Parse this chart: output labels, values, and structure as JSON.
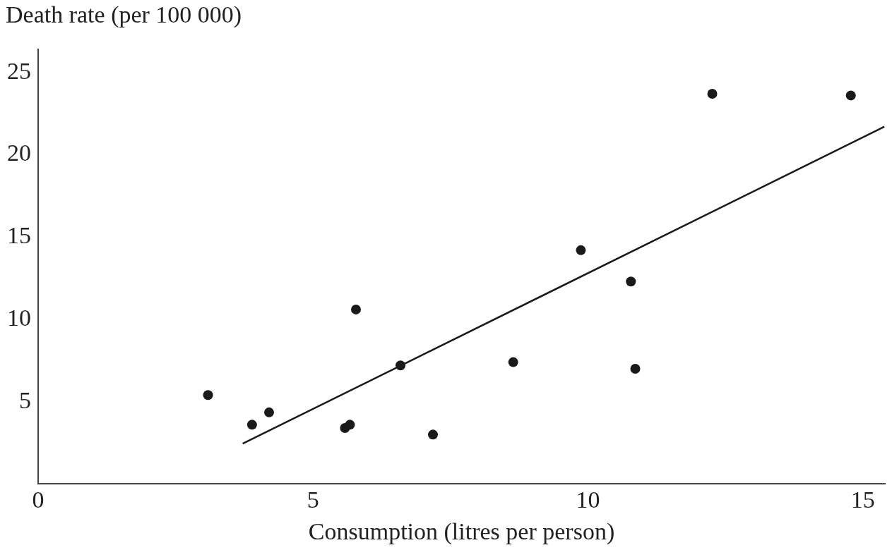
{
  "chart_data": {
    "type": "scatter",
    "xlabel": "Consumption (litres per person)",
    "ylabel": "Death rate (per 100 000)",
    "xlim": [
      0,
      15.4
    ],
    "ylim": [
      0,
      26.4
    ],
    "xticks": [
      0,
      5,
      10,
      15
    ],
    "yticks": [
      5,
      10,
      15,
      20,
      25
    ],
    "grid": false,
    "legend": false,
    "marker": "circle",
    "series": [
      {
        "color": "#1a1a1a",
        "x": [
          3.09,
          3.89,
          4.2,
          5.58,
          5.67,
          5.78,
          6.59,
          7.18,
          8.64,
          9.87,
          10.78,
          10.86,
          12.26,
          14.78
        ],
        "values": [
          5.4,
          3.6,
          4.35,
          3.4,
          3.6,
          10.6,
          7.2,
          3.0,
          7.4,
          14.2,
          12.3,
          7.0,
          23.7,
          23.6
        ]
      },
      {
        "type": "line",
        "color": "#1a1a1a",
        "marker": "none",
        "line_style": "solid",
        "x": [
          3.72,
          15.39
        ],
        "values": [
          2.45,
          21.7
        ]
      }
    ]
  }
}
